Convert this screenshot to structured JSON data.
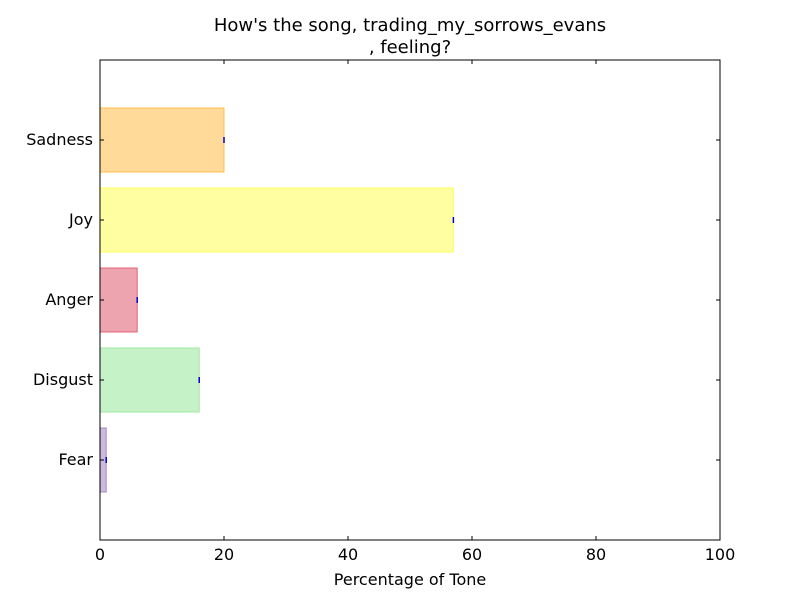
{
  "chart_data": {
    "type": "bar",
    "orientation": "horizontal",
    "title_line1": "How's the song, trading_my_sorrows_evans",
    "title_line2": ", feeling?",
    "xlabel": "Percentage of Tone",
    "ylabel": "",
    "xlim": [
      0,
      100
    ],
    "xticks": [
      0,
      20,
      40,
      60,
      80,
      100
    ],
    "grid": false,
    "categories": [
      "Fear",
      "Disgust",
      "Anger",
      "Joy",
      "Sadness"
    ],
    "values": [
      1,
      16,
      6,
      57,
      20
    ],
    "colors": [
      "#a27fc4",
      "#98e89a",
      "#e05a6e",
      "#ffff55",
      "#ffbb44"
    ]
  }
}
